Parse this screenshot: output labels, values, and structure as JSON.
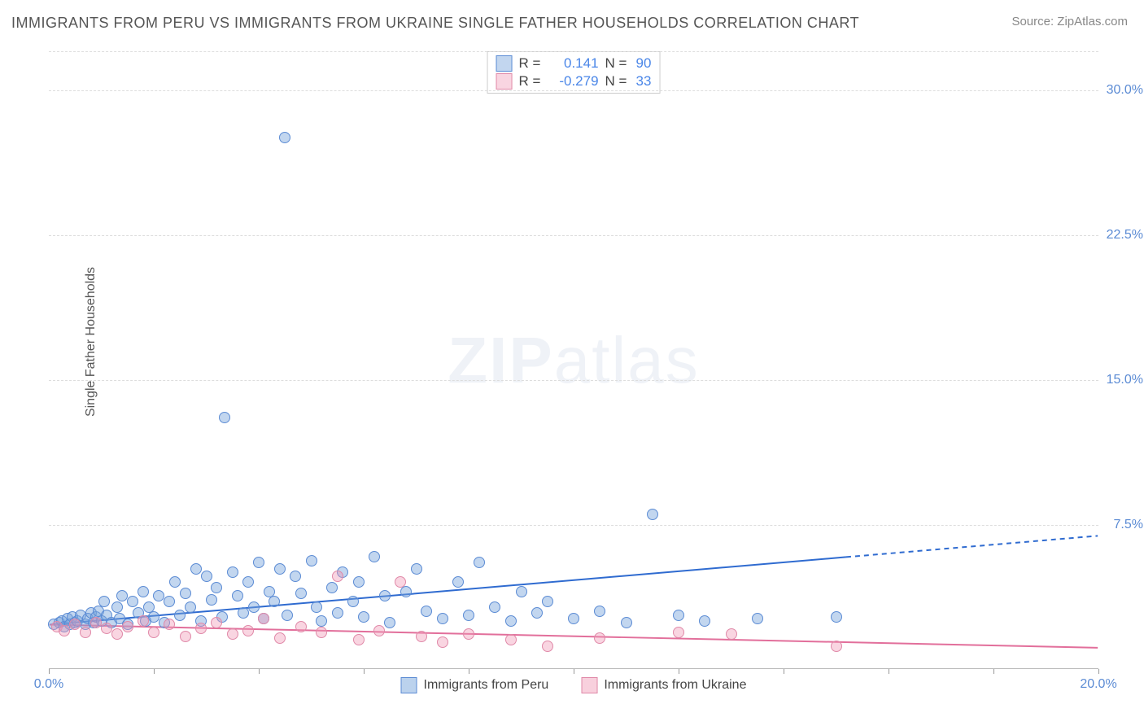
{
  "title": "IMMIGRANTS FROM PERU VS IMMIGRANTS FROM UKRAINE SINGLE FATHER HOUSEHOLDS CORRELATION CHART",
  "source": "Source: ZipAtlas.com",
  "yaxis_label": "Single Father Households",
  "watermark_bold": "ZIP",
  "watermark_light": "atlas",
  "chart": {
    "type": "scatter",
    "background_color": "#ffffff",
    "grid_color": "#dddddd",
    "xlim": [
      0,
      20
    ],
    "ylim": [
      0,
      32
    ],
    "x_ticks": [
      0,
      2,
      4,
      6,
      8,
      10,
      12,
      14,
      16,
      18,
      20
    ],
    "x_tick_labels": {
      "0": "0.0%",
      "20": "20.0%"
    },
    "y_ticks": [
      7.5,
      15.0,
      22.5,
      30.0
    ],
    "y_tick_labels": [
      "7.5%",
      "15.0%",
      "22.5%",
      "30.0%"
    ],
    "point_radius": 7,
    "tick_label_color": "#5b8bd4"
  },
  "series": [
    {
      "id": "peru",
      "label": "Immigrants from Peru",
      "fill_color": "rgba(120,165,220,0.45)",
      "stroke_color": "#5b8bd4",
      "trend_color": "#2f6bd0",
      "trend_width": 2,
      "R_label": "R =",
      "R_value": "0.141",
      "N_label": "N =",
      "N_value": "90",
      "value_color": "#4a86e8",
      "trend": {
        "x1": 0,
        "y1": 2.3,
        "x2_solid": 15.2,
        "y2_solid": 5.8,
        "x2_dash": 20,
        "y2_dash": 6.9
      },
      "points": [
        [
          0.1,
          2.3
        ],
        [
          0.2,
          2.4
        ],
        [
          0.25,
          2.5
        ],
        [
          0.3,
          2.2
        ],
        [
          0.35,
          2.6
        ],
        [
          0.4,
          2.3
        ],
        [
          0.45,
          2.7
        ],
        [
          0.5,
          2.4
        ],
        [
          0.55,
          2.5
        ],
        [
          0.6,
          2.8
        ],
        [
          0.7,
          2.3
        ],
        [
          0.75,
          2.6
        ],
        [
          0.8,
          2.9
        ],
        [
          0.85,
          2.4
        ],
        [
          0.9,
          2.7
        ],
        [
          0.95,
          3.0
        ],
        [
          1.0,
          2.5
        ],
        [
          1.05,
          3.5
        ],
        [
          1.1,
          2.8
        ],
        [
          1.2,
          2.4
        ],
        [
          1.3,
          3.2
        ],
        [
          1.35,
          2.6
        ],
        [
          1.4,
          3.8
        ],
        [
          1.5,
          2.3
        ],
        [
          1.6,
          3.5
        ],
        [
          1.7,
          2.9
        ],
        [
          1.8,
          4.0
        ],
        [
          1.85,
          2.5
        ],
        [
          1.9,
          3.2
        ],
        [
          2.0,
          2.7
        ],
        [
          2.1,
          3.8
        ],
        [
          2.2,
          2.4
        ],
        [
          2.3,
          3.5
        ],
        [
          2.4,
          4.5
        ],
        [
          2.5,
          2.8
        ],
        [
          2.6,
          3.9
        ],
        [
          2.7,
          3.2
        ],
        [
          2.8,
          5.2
        ],
        [
          2.9,
          2.5
        ],
        [
          3.0,
          4.8
        ],
        [
          3.1,
          3.6
        ],
        [
          3.2,
          4.2
        ],
        [
          3.3,
          2.7
        ],
        [
          3.35,
          13.0
        ],
        [
          3.5,
          5.0
        ],
        [
          3.6,
          3.8
        ],
        [
          3.7,
          2.9
        ],
        [
          3.8,
          4.5
        ],
        [
          3.9,
          3.2
        ],
        [
          4.0,
          5.5
        ],
        [
          4.1,
          2.6
        ],
        [
          4.2,
          4.0
        ],
        [
          4.3,
          3.5
        ],
        [
          4.4,
          5.2
        ],
        [
          4.5,
          27.5
        ],
        [
          4.55,
          2.8
        ],
        [
          4.7,
          4.8
        ],
        [
          4.8,
          3.9
        ],
        [
          5.0,
          5.6
        ],
        [
          5.1,
          3.2
        ],
        [
          5.2,
          2.5
        ],
        [
          5.4,
          4.2
        ],
        [
          5.5,
          2.9
        ],
        [
          5.6,
          5.0
        ],
        [
          5.8,
          3.5
        ],
        [
          5.9,
          4.5
        ],
        [
          6.0,
          2.7
        ],
        [
          6.2,
          5.8
        ],
        [
          6.4,
          3.8
        ],
        [
          6.5,
          2.4
        ],
        [
          6.8,
          4.0
        ],
        [
          7.0,
          5.2
        ],
        [
          7.2,
          3.0
        ],
        [
          7.5,
          2.6
        ],
        [
          7.8,
          4.5
        ],
        [
          8.0,
          2.8
        ],
        [
          8.2,
          5.5
        ],
        [
          8.5,
          3.2
        ],
        [
          8.8,
          2.5
        ],
        [
          9.0,
          4.0
        ],
        [
          9.3,
          2.9
        ],
        [
          9.5,
          3.5
        ],
        [
          10.0,
          2.6
        ],
        [
          10.5,
          3.0
        ],
        [
          11.0,
          2.4
        ],
        [
          11.5,
          8.0
        ],
        [
          12.0,
          2.8
        ],
        [
          12.5,
          2.5
        ],
        [
          13.5,
          2.6
        ],
        [
          15.0,
          2.7
        ]
      ]
    },
    {
      "id": "ukraine",
      "label": "Immigrants from Ukraine",
      "fill_color": "rgba(240,150,180,0.40)",
      "stroke_color": "#e089a8",
      "trend_color": "#e26f9b",
      "trend_width": 2,
      "R_label": "R =",
      "R_value": "-0.279",
      "N_label": "N =",
      "N_value": "33",
      "value_color": "#4a86e8",
      "trend": {
        "x1": 0,
        "y1": 2.3,
        "x2_solid": 20,
        "y2_solid": 1.1,
        "x2_dash": 20,
        "y2_dash": 1.1
      },
      "points": [
        [
          0.15,
          2.2
        ],
        [
          0.3,
          2.0
        ],
        [
          0.5,
          2.3
        ],
        [
          0.7,
          1.9
        ],
        [
          0.9,
          2.4
        ],
        [
          1.1,
          2.1
        ],
        [
          1.3,
          1.8
        ],
        [
          1.5,
          2.2
        ],
        [
          1.8,
          2.5
        ],
        [
          2.0,
          1.9
        ],
        [
          2.3,
          2.3
        ],
        [
          2.6,
          1.7
        ],
        [
          2.9,
          2.1
        ],
        [
          3.2,
          2.4
        ],
        [
          3.5,
          1.8
        ],
        [
          3.8,
          2.0
        ],
        [
          4.1,
          2.6
        ],
        [
          4.4,
          1.6
        ],
        [
          4.8,
          2.2
        ],
        [
          5.2,
          1.9
        ],
        [
          5.5,
          4.8
        ],
        [
          5.9,
          1.5
        ],
        [
          6.3,
          2.0
        ],
        [
          6.7,
          4.5
        ],
        [
          7.1,
          1.7
        ],
        [
          7.5,
          1.4
        ],
        [
          8.0,
          1.8
        ],
        [
          8.8,
          1.5
        ],
        [
          9.5,
          1.2
        ],
        [
          10.5,
          1.6
        ],
        [
          12.0,
          1.9
        ],
        [
          13.0,
          1.8
        ],
        [
          15.0,
          1.2
        ]
      ]
    }
  ],
  "legend_bottom": [
    {
      "label": "Immigrants from Peru",
      "fill": "rgba(120,165,220,0.5)",
      "stroke": "#5b8bd4"
    },
    {
      "label": "Immigrants from Ukraine",
      "fill": "rgba(240,150,180,0.45)",
      "stroke": "#e089a8"
    }
  ]
}
